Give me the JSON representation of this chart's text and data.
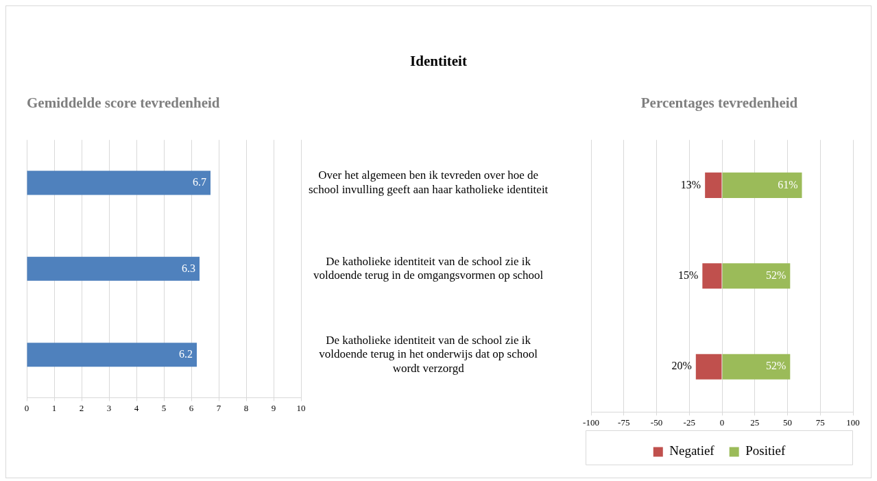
{
  "chart_data": [
    {
      "type": "bar",
      "orientation": "horizontal",
      "title": "Gemiddelde score tevredenheid",
      "annotations": [
        "Identiteit"
      ],
      "categories": [
        "Over het algemeen ben ik tevreden over hoe de school invulling geeft aan haar katholieke identiteit",
        "De katholieke identiteit van de school zie ik voldoende terug in de omgangsvormen op school",
        "De katholieke identiteit van de school zie ik voldoende terug in het onderwijs dat op school wordt verzorgd"
      ],
      "values": [
        6.7,
        6.3,
        6.2
      ],
      "color": "#4f81bd",
      "data_labels": true,
      "xlim": [
        0,
        10
      ],
      "xticks": [
        0,
        1,
        2,
        3,
        4,
        5,
        6,
        7,
        8,
        9,
        10
      ],
      "grid": "x"
    },
    {
      "type": "bar",
      "orientation": "horizontal",
      "tick_labels": "x",
      "title": "Percentages tevredenheid",
      "categories": [
        null,
        null,
        null
      ],
      "series": [
        {
          "name": "Negatief",
          "color": "#c0504d",
          "base": [
            -13,
            -15,
            -20
          ],
          "values": [
            13,
            15,
            20
          ],
          "value_labels": [
            "13%",
            "15%",
            "20%"
          ]
        },
        {
          "name": "Positief",
          "color": "#9bbb59",
          "values": [
            61,
            52,
            52
          ],
          "value_labels": [
            "61%",
            "52%",
            "52%"
          ]
        }
      ],
      "xlim": [
        -100,
        100
      ],
      "xticks": [
        -100,
        -75,
        -50,
        -25,
        0,
        25,
        50,
        75,
        100
      ],
      "grid": "x",
      "legend": "bottom"
    }
  ]
}
